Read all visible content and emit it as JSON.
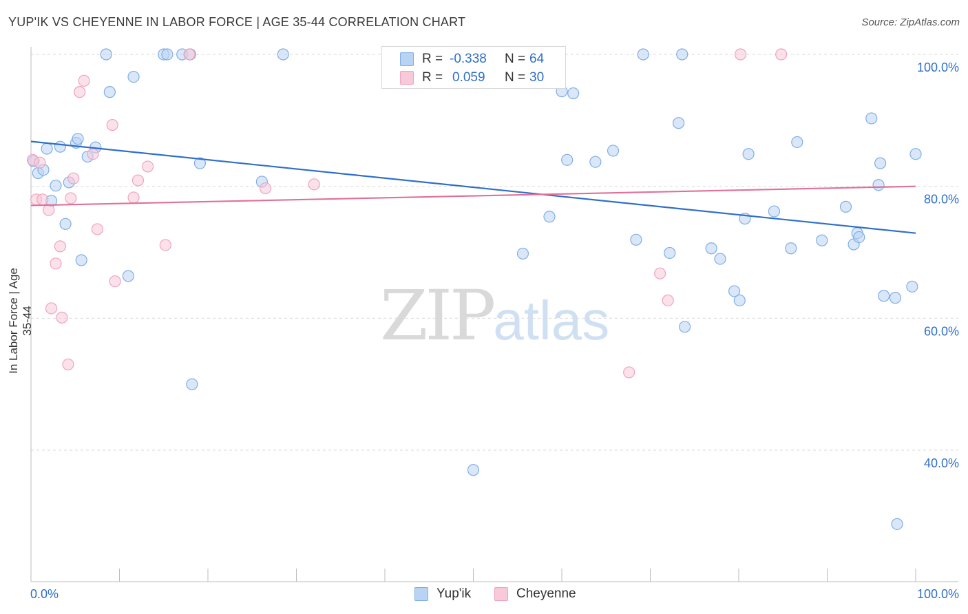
{
  "header": {
    "title": "YUP'IK VS CHEYENNE IN LABOR FORCE | AGE 35-44 CORRELATION CHART",
    "source": "Source: ZipAtlas.com"
  },
  "watermark": {
    "left": "ZIP",
    "right": "atlas"
  },
  "stats_legend": {
    "rows": [
      {
        "r_label": "R =",
        "r_value": "-0.338",
        "n_label": "N =",
        "n_value": "64"
      },
      {
        "r_label": "R =",
        "r_value": "0.059",
        "n_label": "N =",
        "n_value": "30"
      }
    ]
  },
  "bottom_legend": [
    "Yup'ik",
    "Cheyenne"
  ],
  "colors": {
    "yupik_fill": "#b9d3f2",
    "yupik_stroke": "#7faee6",
    "yupik_line": "#2f6fc9",
    "cheyenne_fill": "#f8c9d8",
    "cheyenne_stroke": "#f0a3bd",
    "cheyenne_line": "#e0709a",
    "grid": "#d9d9d9",
    "tick_label": "#2f6fc9"
  },
  "chart_data": {
    "type": "scatter",
    "title": "YUP'IK VS CHEYENNE IN LABOR FORCE | AGE 35-44 CORRELATION CHART",
    "xlabel": "",
    "ylabel": "In Labor Force | Age 35-44",
    "xlim": [
      0,
      100
    ],
    "ylim": [
      20,
      102
    ],
    "x_tick_labels": [
      "0.0%",
      "100.0%"
    ],
    "y_ticks": [
      40,
      60,
      80,
      100
    ],
    "y_tick_labels": [
      "40.0%",
      "60.0%",
      "80.0%",
      "100.0%"
    ],
    "grid": "horizontal dashed",
    "legend": "bottom-center",
    "series": [
      {
        "name": "Yup'ik",
        "r": -0.338,
        "n": 64,
        "trend": {
          "x": [
            0,
            100
          ],
          "y": [
            86.8,
            72.9
          ]
        },
        "points": [
          [
            0.3,
            83.8
          ],
          [
            0.8,
            82.0
          ],
          [
            1.4,
            82.5
          ],
          [
            1.8,
            85.7
          ],
          [
            2.3,
            77.8
          ],
          [
            2.8,
            80.1
          ],
          [
            3.3,
            86.0
          ],
          [
            3.9,
            74.3
          ],
          [
            4.3,
            80.6
          ],
          [
            5.1,
            86.6
          ],
          [
            5.3,
            87.2
          ],
          [
            5.7,
            68.8
          ],
          [
            6.4,
            84.5
          ],
          [
            7.3,
            85.9
          ],
          [
            8.5,
            100.0
          ],
          [
            8.9,
            94.3
          ],
          [
            11.0,
            66.4
          ],
          [
            11.6,
            96.6
          ],
          [
            15.0,
            100.0
          ],
          [
            15.4,
            100.0
          ],
          [
            17.1,
            100.0
          ],
          [
            18.0,
            100.0
          ],
          [
            18.2,
            50.0
          ],
          [
            19.1,
            83.5
          ],
          [
            26.1,
            80.7
          ],
          [
            28.5,
            100.0
          ],
          [
            41.6,
            100.0
          ],
          [
            50.0,
            37.0
          ],
          [
            55.6,
            69.8
          ],
          [
            58.6,
            75.4
          ],
          [
            59.8,
            100.0
          ],
          [
            60.0,
            94.4
          ],
          [
            60.6,
            84.0
          ],
          [
            61.3,
            94.1
          ],
          [
            63.8,
            83.7
          ],
          [
            65.8,
            85.4
          ],
          [
            68.4,
            71.9
          ],
          [
            69.2,
            100.0
          ],
          [
            72.2,
            69.9
          ],
          [
            73.2,
            89.6
          ],
          [
            73.6,
            100.0
          ],
          [
            73.9,
            58.7
          ],
          [
            76.9,
            70.6
          ],
          [
            77.9,
            69.0
          ],
          [
            79.5,
            64.1
          ],
          [
            80.1,
            62.7
          ],
          [
            80.7,
            75.1
          ],
          [
            81.1,
            84.9
          ],
          [
            84.0,
            76.2
          ],
          [
            85.9,
            70.6
          ],
          [
            86.6,
            86.7
          ],
          [
            89.4,
            71.8
          ],
          [
            92.1,
            76.9
          ],
          [
            93.0,
            71.2
          ],
          [
            93.4,
            72.9
          ],
          [
            93.6,
            72.3
          ],
          [
            95.0,
            90.3
          ],
          [
            95.8,
            80.2
          ],
          [
            96.0,
            83.5
          ],
          [
            96.4,
            63.4
          ],
          [
            97.7,
            63.1
          ],
          [
            97.9,
            28.8
          ],
          [
            99.6,
            64.8
          ],
          [
            100.0,
            84.9
          ]
        ]
      },
      {
        "name": "Cheyenne",
        "r": 0.059,
        "n": 30,
        "trend": {
          "x": [
            0,
            100
          ],
          "y": [
            77.1,
            80.0
          ]
        },
        "points": [
          [
            0.2,
            84.0
          ],
          [
            0.6,
            78.0
          ],
          [
            1.0,
            83.6
          ],
          [
            1.3,
            78.0
          ],
          [
            2.0,
            76.4
          ],
          [
            2.3,
            61.5
          ],
          [
            2.8,
            68.3
          ],
          [
            3.3,
            70.9
          ],
          [
            3.5,
            60.1
          ],
          [
            4.2,
            53.0
          ],
          [
            4.5,
            78.2
          ],
          [
            4.8,
            81.2
          ],
          [
            5.5,
            94.3
          ],
          [
            6.0,
            96.0
          ],
          [
            7.0,
            84.9
          ],
          [
            7.5,
            73.5
          ],
          [
            9.2,
            89.3
          ],
          [
            9.5,
            65.6
          ],
          [
            11.6,
            78.3
          ],
          [
            12.1,
            80.9
          ],
          [
            13.2,
            83.0
          ],
          [
            15.2,
            71.1
          ],
          [
            17.9,
            100.0
          ],
          [
            26.5,
            79.7
          ],
          [
            32.0,
            80.3
          ],
          [
            67.6,
            51.8
          ],
          [
            71.1,
            66.8
          ],
          [
            72.0,
            62.7
          ],
          [
            80.2,
            100.0
          ],
          [
            84.8,
            100.0
          ]
        ]
      }
    ]
  }
}
